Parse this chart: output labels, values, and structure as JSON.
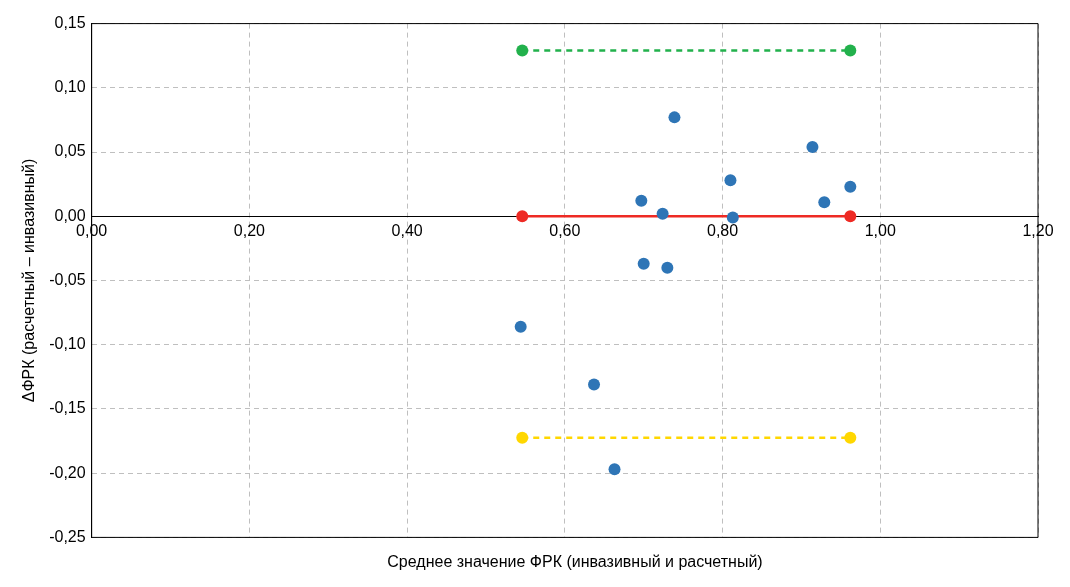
{
  "chart_data": {
    "type": "scatter",
    "xlabel": "Среднее значение ФРК (инвазивный и расчетный)",
    "ylabel": "ΔФРК (расчетный – инвазивный)",
    "xlim": [
      0,
      1.2
    ],
    "ylim": [
      -0.25,
      0.15
    ],
    "xticks": [
      {
        "value": 0,
        "label": "0,00"
      },
      {
        "value": 0.2,
        "label": "0,20"
      },
      {
        "value": 0.4,
        "label": "0,40"
      },
      {
        "value": 0.6,
        "label": "0,60"
      },
      {
        "value": 0.8,
        "label": "0,80"
      },
      {
        "value": 1,
        "label": "1,00"
      },
      {
        "value": 1.2,
        "label": "1,20"
      }
    ],
    "yticks": [
      {
        "value": -0.25,
        "label": "-0,25"
      },
      {
        "value": -0.2,
        "label": "-0,20"
      },
      {
        "value": -0.15,
        "label": "-0,15"
      },
      {
        "value": -0.1,
        "label": "-0,10"
      },
      {
        "value": -0.05,
        "label": "-0,05"
      },
      {
        "value": 0,
        "label": "0,00"
      },
      {
        "value": 0.05,
        "label": "0,05"
      },
      {
        "value": 0.1,
        "label": "0,10"
      },
      {
        "value": 0.15,
        "label": "0,15"
      }
    ],
    "grid": true,
    "legend": false,
    "marker": "circle",
    "series": [
      {
        "type": "scatter",
        "color": "#2e75b6",
        "x": [
          0.739,
          0.914,
          0.81,
          0.962,
          0.929,
          0.697,
          0.724,
          0.813,
          0.7,
          0.73,
          0.544,
          0.637,
          0.663
        ],
        "values": [
          0.077,
          0.054,
          0.028,
          0.023,
          0.011,
          0.012,
          0.002,
          -0.001,
          -0.037,
          -0.04,
          -0.086,
          -0.131,
          -0.197
        ]
      },
      {
        "type": "line",
        "color": "#22b14c",
        "line_style": "dashed",
        "x": [
          0.546,
          0.962
        ],
        "values": [
          0.129,
          0.129
        ]
      },
      {
        "type": "line",
        "color": "#ee2a24",
        "line_style": "solid",
        "x": [
          0.546,
          0.962
        ],
        "values": [
          0,
          0
        ]
      },
      {
        "type": "line",
        "color": "#ffd700",
        "line_style": "dashed",
        "x": [
          0.546,
          0.962
        ],
        "values": [
          -0.1725,
          -0.1725
        ]
      }
    ]
  }
}
